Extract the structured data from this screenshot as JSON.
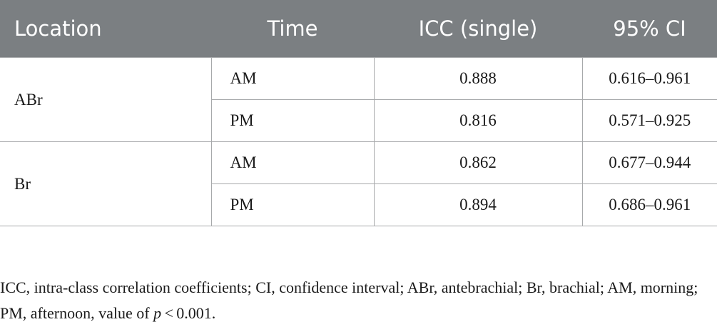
{
  "table": {
    "headers": [
      "Location",
      "Time",
      "ICC (single)",
      "95% CI"
    ],
    "groups": [
      {
        "location": "ABr",
        "rows": [
          {
            "time": "AM",
            "icc": "0.888",
            "ci": "0.616–0.961"
          },
          {
            "time": "PM",
            "icc": "0.816",
            "ci": "0.571–0.925"
          }
        ]
      },
      {
        "location": "Br",
        "rows": [
          {
            "time": "AM",
            "icc": "0.862",
            "ci": "0.677–0.944"
          },
          {
            "time": "PM",
            "icc": "0.894",
            "ci": "0.686–0.961"
          }
        ]
      }
    ]
  },
  "footnote": {
    "text_before_p": "ICC, intra-class correlation coefficients; CI, confidence interval; ABr, antebrachial; Br, brachial; AM, morning; PM, afternoon, value of ",
    "p_symbol": "p",
    "text_after_p": " < 0.001."
  },
  "colors": {
    "header_background": "#7b7f82",
    "header_text": "#ffffff",
    "grid_lines": "#a7a9ab"
  }
}
